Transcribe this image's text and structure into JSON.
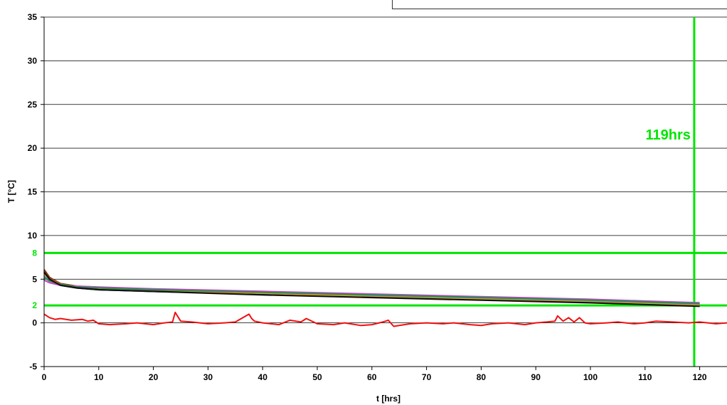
{
  "chart_data": {
    "type": "line",
    "xlabel": "t [hrs]",
    "ylabel": "T [°C]",
    "xlim": [
      0,
      125
    ],
    "ylim": [
      -5,
      35
    ],
    "x_ticks": [
      0,
      10,
      20,
      30,
      40,
      50,
      60,
      70,
      80,
      90,
      100,
      110,
      120
    ],
    "y_ticks": [
      -5,
      0,
      5,
      10,
      15,
      20,
      25,
      30,
      35
    ],
    "grid": "horizontal",
    "reference_lines": [
      {
        "axis": "y",
        "value": 8,
        "label": "8",
        "color": "#00e600"
      },
      {
        "axis": "y",
        "value": 2,
        "label": "2",
        "color": "#00e600"
      },
      {
        "axis": "x",
        "value": 119,
        "label": "119hrs",
        "color": "#00e600"
      }
    ],
    "series": [
      {
        "color": "#00008b",
        "x": [
          0,
          1,
          3,
          6,
          10,
          20,
          40,
          60,
          80,
          100,
          115,
          120
        ],
        "y": [
          5.9,
          5.0,
          4.3,
          4.0,
          3.8,
          3.6,
          3.3,
          3.0,
          2.7,
          2.4,
          2.1,
          2.0
        ]
      },
      {
        "color": "#8b3a0f",
        "x": [
          0,
          1,
          3,
          6,
          10,
          20,
          40,
          60,
          80,
          100,
          115,
          120
        ],
        "y": [
          6.1,
          5.2,
          4.5,
          4.2,
          4.0,
          3.8,
          3.5,
          3.1,
          2.8,
          2.5,
          2.2,
          2.1
        ]
      },
      {
        "color": "#cc44cc",
        "x": [
          0,
          1,
          3,
          6,
          10,
          20,
          40,
          60,
          80,
          100,
          115,
          120
        ],
        "y": [
          4.9,
          4.6,
          4.3,
          4.2,
          4.1,
          3.9,
          3.6,
          3.3,
          3.0,
          2.7,
          2.4,
          2.3
        ]
      },
      {
        "color": "#33aadd",
        "x": [
          0,
          1,
          3,
          6,
          10,
          20,
          40,
          60,
          80,
          100,
          115,
          120
        ],
        "y": [
          5.4,
          4.9,
          4.4,
          4.1,
          3.9,
          3.7,
          3.4,
          3.1,
          2.8,
          2.5,
          2.2,
          2.1
        ]
      },
      {
        "color": "#e8a020",
        "x": [
          0,
          1,
          3,
          6,
          10,
          20,
          40,
          60,
          80,
          100,
          115,
          120
        ],
        "y": [
          5.6,
          5.0,
          4.4,
          4.1,
          3.9,
          3.7,
          3.4,
          3.0,
          2.7,
          2.4,
          2.1,
          2.0
        ]
      },
      {
        "color": "#2e8b57",
        "x": [
          0,
          1,
          3,
          6,
          10,
          20,
          40,
          60,
          80,
          100,
          115,
          120
        ],
        "y": [
          5.2,
          4.8,
          4.4,
          4.1,
          4.0,
          3.8,
          3.5,
          3.2,
          2.9,
          2.6,
          2.3,
          2.2
        ]
      },
      {
        "color": "#111111",
        "x": [
          0,
          1,
          3,
          6,
          10,
          20,
          40,
          60,
          80,
          100,
          115,
          120
        ],
        "y": [
          5.8,
          5.0,
          4.3,
          4.0,
          3.8,
          3.6,
          3.2,
          2.9,
          2.6,
          2.3,
          2.0,
          1.9
        ]
      },
      {
        "color": "#ee1111",
        "x": [
          0,
          1,
          2,
          3,
          5,
          7,
          8,
          9,
          10,
          12,
          15,
          17,
          20,
          22,
          23.5,
          24,
          25,
          27,
          30,
          33,
          35,
          37.5,
          38,
          38.5,
          40,
          43,
          45,
          47,
          48,
          50,
          53,
          55,
          58,
          60,
          62,
          63,
          64,
          65,
          67,
          70,
          73,
          75,
          78,
          80,
          82,
          85,
          88,
          90,
          92,
          93.5,
          94,
          95,
          96,
          97,
          98,
          99,
          100,
          103,
          105,
          108,
          110,
          112,
          115,
          118,
          120,
          123,
          125
        ],
        "y": [
          1.0,
          0.6,
          0.4,
          0.5,
          0.3,
          0.4,
          0.2,
          0.3,
          -0.1,
          -0.2,
          -0.1,
          0.0,
          -0.2,
          0.0,
          0.1,
          1.2,
          0.2,
          0.1,
          -0.1,
          0.0,
          0.1,
          1.0,
          0.5,
          0.2,
          0.0,
          -0.2,
          0.3,
          0.1,
          0.5,
          -0.1,
          -0.2,
          0.0,
          -0.3,
          -0.2,
          0.1,
          0.3,
          -0.4,
          -0.3,
          -0.1,
          0.0,
          -0.1,
          0.0,
          -0.2,
          -0.3,
          -0.1,
          0.0,
          -0.2,
          0.0,
          0.1,
          0.2,
          0.8,
          0.2,
          0.6,
          0.1,
          0.6,
          0.0,
          -0.1,
          0.0,
          0.1,
          -0.1,
          0.0,
          0.2,
          0.1,
          0.0,
          0.1,
          -0.1,
          0.0
        ]
      }
    ]
  }
}
